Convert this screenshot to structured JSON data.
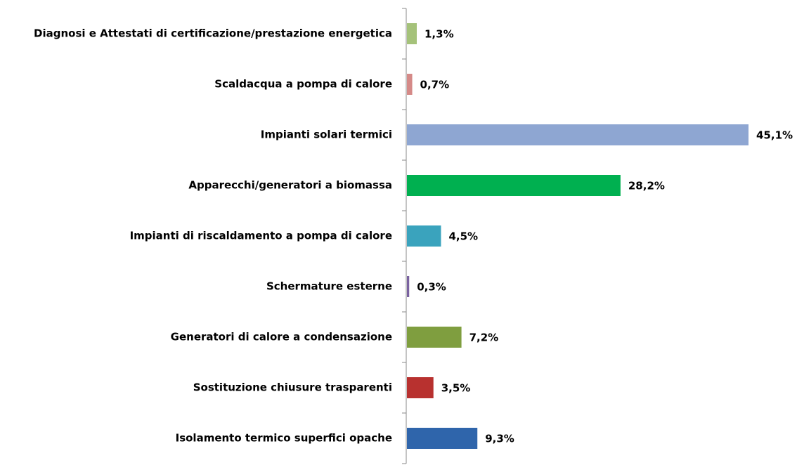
{
  "chart_data": {
    "type": "bar",
    "orientation": "horizontal",
    "categories": [
      "Diagnosi e Attestati di certificazione/prestazione energetica",
      "Scaldacqua a pompa di calore",
      "Impianti solari termici",
      "Apparecchi/generatori a biomassa",
      "Impianti di riscaldamento a pompa di calore",
      "Schermature esterne",
      "Generatori di calore a condensazione",
      "Sostituzione chiusure trasparenti",
      "Isolamento termico superfici opache"
    ],
    "values": [
      1.3,
      0.7,
      45.1,
      28.2,
      4.5,
      0.3,
      7.2,
      3.5,
      9.3
    ],
    "value_labels": [
      "1,3%",
      "0,7%",
      "45,1%",
      "28,2%",
      "4,5%",
      "0,3%",
      "7,2%",
      "3,5%",
      "9,3%"
    ],
    "colors": [
      "#a5c27a",
      "#d58a88",
      "#8ea6d2",
      "#00b050",
      "#3aa3bd",
      "#7a62a0",
      "#7f9e3f",
      "#b8312f",
      "#2f65ab"
    ]
  }
}
